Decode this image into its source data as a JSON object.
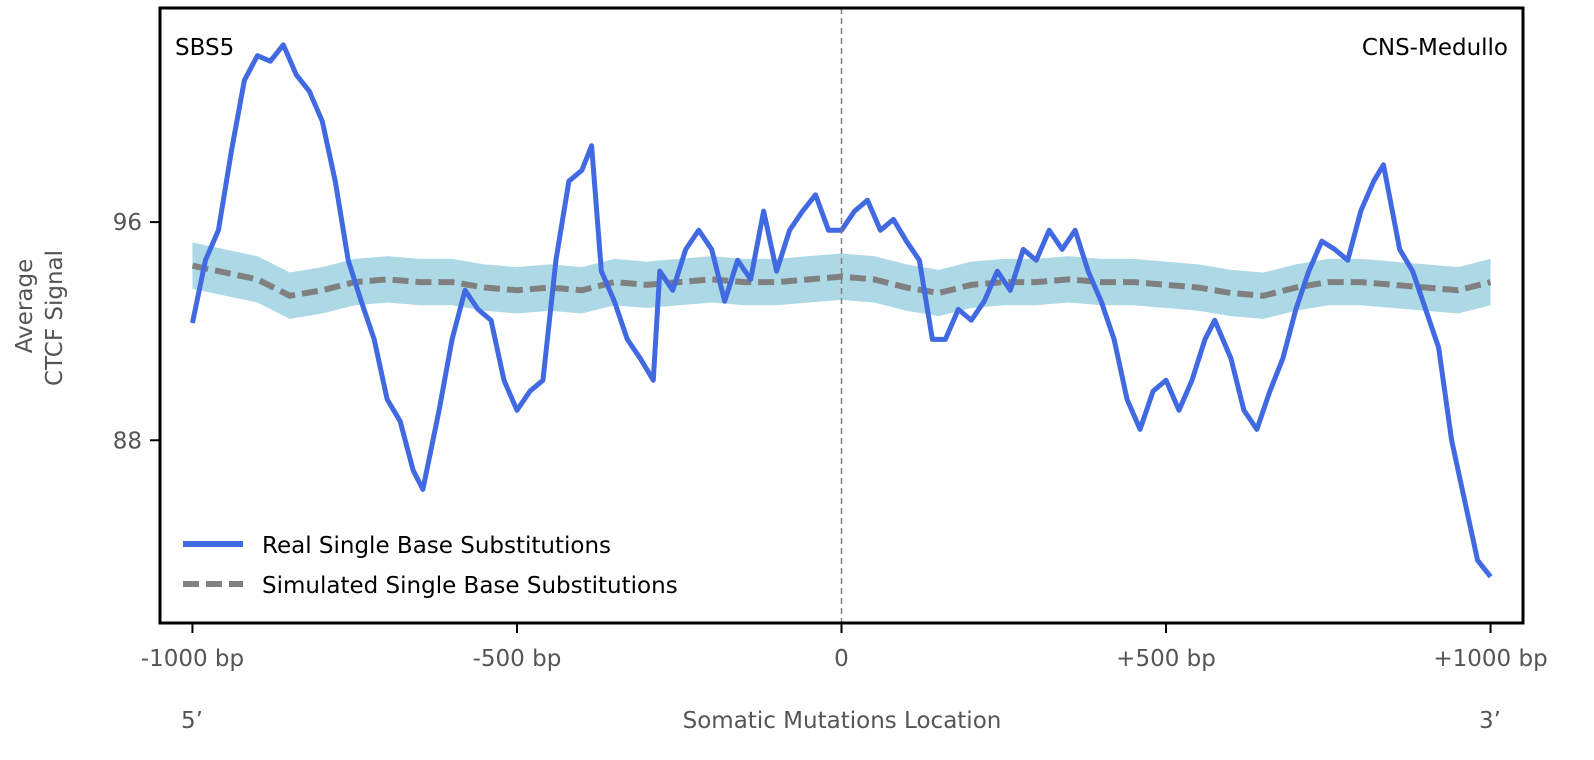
{
  "chart_data": {
    "type": "line",
    "title_left": "SBS5",
    "title_right": "CNS-Medullo",
    "xlabel": "Somatic Mutations Location",
    "ylabel_lines": [
      "Average",
      "CTCF Signal"
    ],
    "end_labels": {
      "left": "5’",
      "right": "3’"
    },
    "xlim": [
      -1050,
      1050
    ],
    "ylim": [
      81.3,
      103.85
    ],
    "xticks": [
      {
        "value": -1000,
        "label": "-1000 bp"
      },
      {
        "value": -500,
        "label": "-500 bp"
      },
      {
        "value": 0,
        "label": "0"
      },
      {
        "value": 500,
        "label": "+500 bp"
      },
      {
        "value": 1000,
        "label": "+1000 bp"
      }
    ],
    "yticks": [
      {
        "value": 96,
        "label": "96"
      },
      {
        "value": 88,
        "label": "88"
      }
    ],
    "vline": 0,
    "legend": {
      "placement": "lower-left",
      "entries": [
        "Real Single Base Substitutions",
        "Simulated Single Base Substitutions"
      ]
    },
    "colors": {
      "real": "#4169e1",
      "simulated": "#808080",
      "band": "#add8e6",
      "vline": "#808080"
    },
    "series": [
      {
        "name": "Real Single Base Substitutions",
        "style": "solid",
        "x": [
          -1000,
          -980,
          -960,
          -940,
          -920,
          -900,
          -880,
          -860,
          -840,
          -820,
          -800,
          -780,
          -760,
          -740,
          -720,
          -700,
          -680,
          -660,
          -645,
          -620,
          -600,
          -580,
          -560,
          -540,
          -520,
          -500,
          -480,
          -460,
          -440,
          -420,
          -400,
          -385,
          -370,
          -350,
          -330,
          -310,
          -290,
          -280,
          -260,
          -240,
          -220,
          -200,
          -180,
          -160,
          -140,
          -120,
          -100,
          -80,
          -60,
          -40,
          -20,
          0,
          20,
          40,
          60,
          80,
          100,
          120,
          140,
          160,
          180,
          200,
          220,
          240,
          260,
          280,
          300,
          320,
          340,
          360,
          380,
          400,
          420,
          440,
          460,
          480,
          500,
          520,
          540,
          560,
          575,
          600,
          620,
          640,
          660,
          680,
          700,
          720,
          740,
          760,
          780,
          800,
          820,
          835,
          860,
          880,
          900,
          920,
          940,
          960,
          980,
          1000
        ],
        "y": [
          92.3,
          94.6,
          95.7,
          98.6,
          101.2,
          102.1,
          101.9,
          102.5,
          101.4,
          100.8,
          99.7,
          97.5,
          94.6,
          93.1,
          91.7,
          89.5,
          88.7,
          86.9,
          86.2,
          89.1,
          91.7,
          93.5,
          92.8,
          92.4,
          90.2,
          89.1,
          89.8,
          90.2,
          94.6,
          97.5,
          97.9,
          98.8,
          94.2,
          93.1,
          91.7,
          91.0,
          90.2,
          94.2,
          93.5,
          95.0,
          95.7,
          95.0,
          93.1,
          94.6,
          93.9,
          96.4,
          94.2,
          95.7,
          96.4,
          97.0,
          95.7,
          95.7,
          96.4,
          96.8,
          95.7,
          96.1,
          95.3,
          94.6,
          91.7,
          91.7,
          92.8,
          92.4,
          93.1,
          94.2,
          93.5,
          95.0,
          94.6,
          95.7,
          95.0,
          95.7,
          94.2,
          93.1,
          91.7,
          89.5,
          88.4,
          89.8,
          90.2,
          89.1,
          90.2,
          91.7,
          92.4,
          91.0,
          89.1,
          88.4,
          89.8,
          91.0,
          92.8,
          94.2,
          95.3,
          95.0,
          94.6,
          96.4,
          97.5,
          98.1,
          95.0,
          94.2,
          92.8,
          91.4,
          88.0,
          85.8,
          83.6,
          83.0
        ]
      },
      {
        "name": "Simulated Single Base Substitutions",
        "style": "dashed",
        "x": [
          -1000,
          -900,
          -850,
          -800,
          -750,
          -700,
          -650,
          -600,
          -550,
          -500,
          -450,
          -400,
          -350,
          -300,
          -250,
          -200,
          -150,
          -100,
          -50,
          0,
          50,
          100,
          150,
          200,
          250,
          300,
          350,
          400,
          450,
          500,
          550,
          600,
          650,
          700,
          750,
          800,
          850,
          900,
          950,
          1000
        ],
        "y": [
          94.4,
          93.9,
          93.3,
          93.5,
          93.8,
          93.9,
          93.8,
          93.8,
          93.6,
          93.5,
          93.6,
          93.5,
          93.8,
          93.7,
          93.8,
          93.9,
          93.8,
          93.8,
          93.9,
          94.0,
          93.9,
          93.6,
          93.4,
          93.7,
          93.8,
          93.8,
          93.9,
          93.8,
          93.8,
          93.7,
          93.6,
          93.4,
          93.3,
          93.6,
          93.8,
          93.8,
          93.7,
          93.6,
          93.5,
          93.8
        ],
        "band_halfwidth": 0.85
      }
    ]
  }
}
